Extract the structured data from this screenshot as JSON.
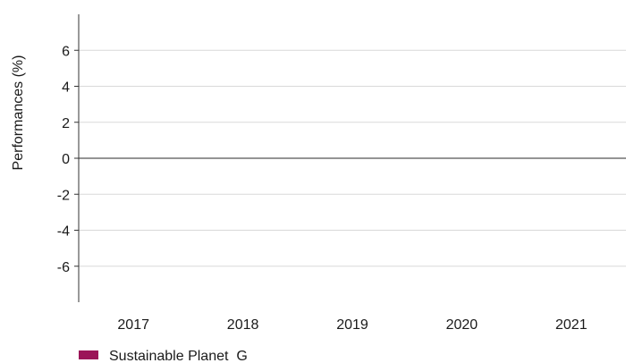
{
  "chart_data": {
    "type": "bar",
    "title": "",
    "xlabel": "",
    "ylabel": "Performances (%)",
    "categories": [
      "2017",
      "2018",
      "2019",
      "2020",
      "2021"
    ],
    "series": [
      {
        "name": "Sustainable Planet  G",
        "values": [
          null,
          null,
          null,
          null,
          null
        ],
        "color": "#9b1458"
      }
    ],
    "ylim": [
      -8,
      8
    ],
    "yticks": [
      6,
      4,
      2,
      0,
      -2,
      -4,
      -6
    ],
    "ytick_labels": [
      "6",
      "4",
      "2",
      "0",
      "-2",
      "-4",
      "-6"
    ],
    "grid": true,
    "legend_position": "bottom-left"
  }
}
